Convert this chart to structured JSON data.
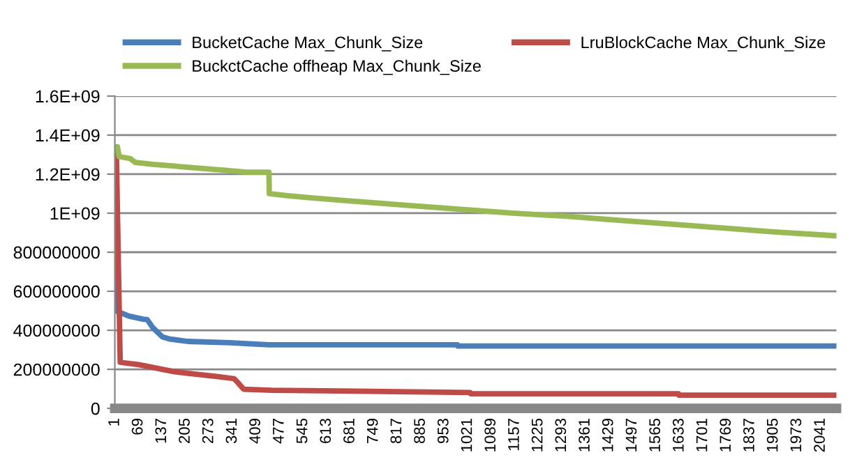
{
  "chart_data": {
    "type": "line",
    "xlim": [
      0.5,
      2086.5
    ],
    "xticks": [
      1,
      69,
      137,
      205,
      273,
      341,
      409,
      477,
      545,
      613,
      681,
      749,
      817,
      885,
      953,
      1021,
      1089,
      1157,
      1225,
      1293,
      1361,
      1429,
      1497,
      1565,
      1633,
      1701,
      1769,
      1837,
      1905,
      1973,
      2041
    ],
    "ylim": [
      0,
      1600000000
    ],
    "yticks": [
      0,
      200000000,
      400000000,
      600000000,
      800000000,
      {
        "value": 1000000000,
        "label": "1E+09"
      },
      {
        "value": 1200000000,
        "label": "1.2E+09"
      },
      {
        "value": 1400000000,
        "label": "1.4E+09"
      },
      {
        "value": 1600000000,
        "label": "1.6E+09"
      }
    ],
    "grid": "y",
    "legend": "top",
    "marker": "none",
    "line_style": "solid",
    "series": [
      {
        "name": "BucketCache Max_Chunk_Size",
        "color": "#4a7ebb",
        "x": [
          1,
          2,
          4,
          41,
          82,
          94,
          110,
          138,
          160,
          211,
          333,
          446,
          991,
          992,
          2086
        ],
        "values": [
          1320000000,
          535000000,
          500000000,
          473000000,
          457000000,
          455000000,
          414000000,
          366000000,
          355000000,
          343000000,
          336000000,
          326000000,
          326000000,
          319000000,
          319000000
        ]
      },
      {
        "name": "LruBlockCache Max_Chunk_Size",
        "color": "#be4b48",
        "x": [
          1,
          5,
          16,
          70,
          118,
          171,
          231,
          292,
          345,
          352,
          373,
          454,
          1028,
          1029,
          1630,
          1631,
          2086
        ],
        "values": [
          1330000000,
          1300000000,
          236000000,
          224000000,
          207000000,
          188000000,
          176000000,
          164000000,
          152000000,
          140000000,
          98000000,
          93000000,
          81000000,
          75000000,
          75000000,
          68000000,
          68000000
        ]
      },
      {
        "name": "BuckctCache offheap Max_Chunk_Size",
        "color": "#98b954",
        "x": [
          1,
          8,
          13,
          45,
          60,
          110,
          180,
          250,
          320,
          380,
          446,
          447,
          500,
          560,
          700,
          850,
          1000,
          1150,
          1300,
          1450,
          1600,
          1750,
          1900,
          2086
        ],
        "values": [
          1340000000,
          1340000000,
          1290000000,
          1280000000,
          1260000000,
          1250000000,
          1240000000,
          1230000000,
          1220000000,
          1210000000,
          1210000000,
          1100000000,
          1090000000,
          1080000000,
          1060000000,
          1040000000,
          1020000000,
          1000000000,
          985000000,
          965000000,
          945000000,
          925000000,
          905000000,
          884000000
        ]
      }
    ]
  }
}
